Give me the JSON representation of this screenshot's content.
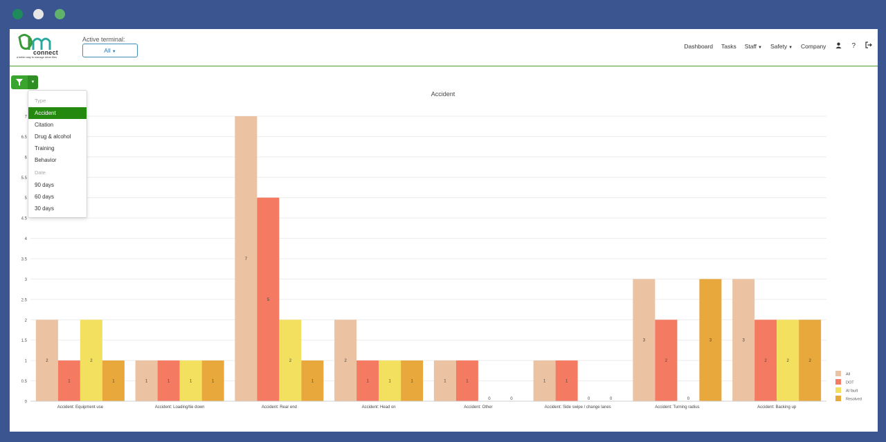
{
  "window_controls": [
    {
      "name": "close",
      "color": "#1f8a5c"
    },
    {
      "name": "minimize",
      "color": "#e6e6e6"
    },
    {
      "name": "maximize",
      "color": "#5fb36a"
    }
  ],
  "header": {
    "logo_text": "connect",
    "logo_tagline": "a better way to manage driver files",
    "terminal_label": "Active terminal:",
    "terminal_value": "All"
  },
  "nav": {
    "items": [
      {
        "label": "Dashboard",
        "dropdown": false
      },
      {
        "label": "Tasks",
        "dropdown": false
      },
      {
        "label": "Staff",
        "dropdown": true
      },
      {
        "label": "Safety",
        "dropdown": true
      },
      {
        "label": "Company",
        "dropdown": false
      }
    ],
    "icons": [
      "user-icon",
      "help-icon",
      "logout-icon"
    ],
    "help_glyph": "?"
  },
  "filter_menu": {
    "type_header": "Type",
    "type_items": [
      "Accident",
      "Citation",
      "Drug & alcohol",
      "Training",
      "Behavior"
    ],
    "selected": "Accident",
    "date_header": "Date",
    "date_items": [
      "90 days",
      "60 days",
      "30 days"
    ]
  },
  "colors": {
    "accent_green": "#3aa52e",
    "nav_border": "#4a9a2a",
    "frame": "#3a5590"
  },
  "chart_data": {
    "type": "bar",
    "title": "Accident",
    "categories": [
      "Accident: Equipment use",
      "Accident: Loading/tie down",
      "Accident: Rear end",
      "Accident: Head on",
      "Accident: Other",
      "Accident: Side swipe / change lanes",
      "Accident: Turning radius",
      "Accident: Backing up"
    ],
    "series": [
      {
        "name": "All",
        "color": "#ebc2a2",
        "values": [
          2,
          1,
          7,
          2,
          1,
          1,
          3,
          3
        ]
      },
      {
        "name": "DOT",
        "color": "#f47a62",
        "values": [
          1,
          1,
          5,
          1,
          1,
          1,
          2,
          2
        ]
      },
      {
        "name": "At fault",
        "color": "#f2e05e",
        "values": [
          2,
          1,
          2,
          1,
          0,
          0,
          0,
          2
        ]
      },
      {
        "name": "Resolved",
        "color": "#e8a83c",
        "values": [
          1,
          1,
          1,
          1,
          0,
          0,
          3,
          2
        ]
      }
    ],
    "y_ticks": [
      "0",
      "0.5",
      "1",
      "1.5",
      "2",
      "2.5",
      "3",
      "3.5",
      "4",
      "4.5",
      "5",
      "5.5",
      "6",
      "6.5",
      "7"
    ],
    "ylim": [
      0,
      7
    ],
    "grid": true,
    "legend_position": "bottom-right"
  }
}
